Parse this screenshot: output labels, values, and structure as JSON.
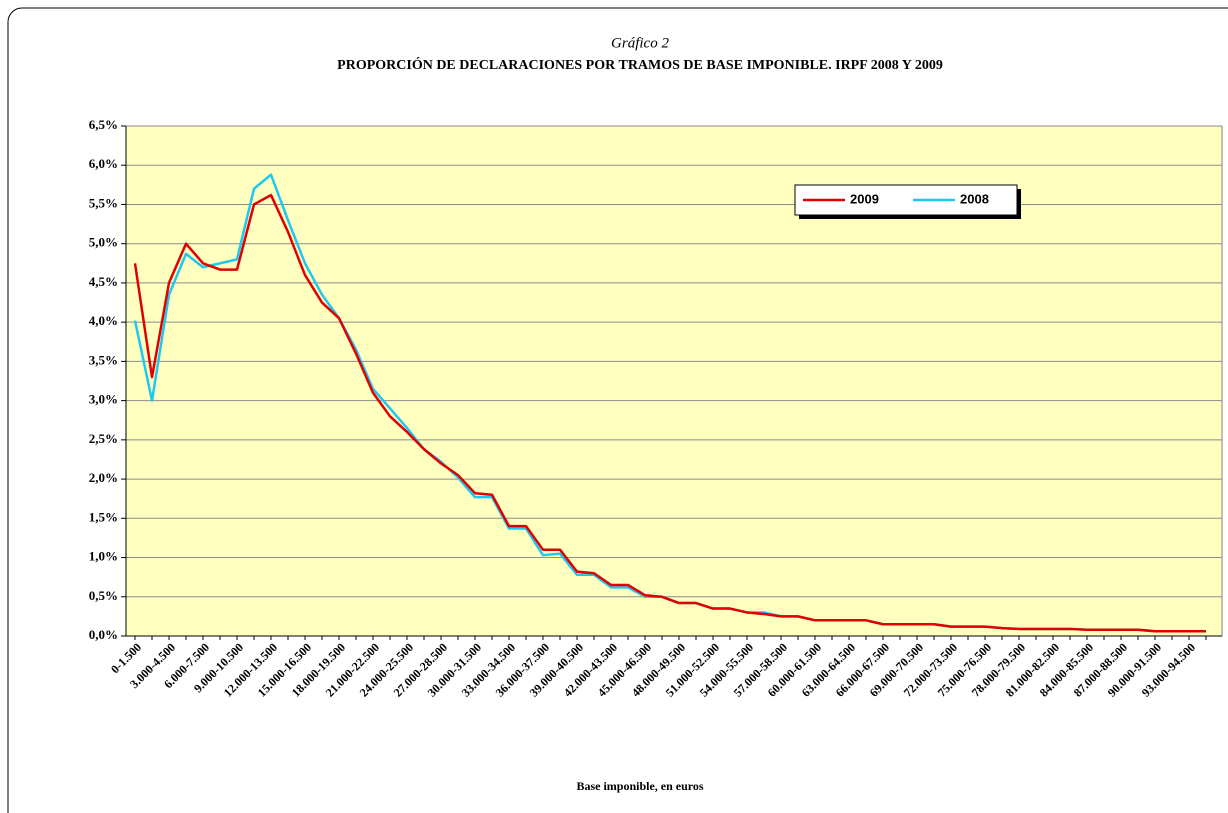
{
  "chart_data": {
    "type": "line",
    "supertitle": "Gráfico 2",
    "title": "PROPORCIÓN DE DECLARACIONES POR TRAMOS DE BASE IMPONIBLE. IRPF 2008 Y 2009",
    "x_label": "Base imponible, en euros",
    "categories": [
      "0-1.500",
      null,
      "3.000-4.500",
      null,
      "6.000-7.500",
      null,
      "9.000-10.500",
      null,
      "12.000-13.500",
      null,
      "15.000-16.500",
      null,
      "18.000-19.500",
      null,
      "21.000-22.500",
      null,
      "24.000-25.500",
      null,
      "27.000-28.500",
      null,
      "30.000-31.500",
      null,
      "33.000-34.500",
      null,
      "36.000-37.500",
      null,
      "39.000-40.500",
      null,
      "42.000-43.500",
      null,
      "45.000-46.500",
      null,
      "48.000-49.500",
      null,
      "51.000-52.500",
      null,
      "54.000-55.500",
      null,
      "57.000-58.500",
      null,
      "60.000-61.500",
      null,
      "63.000-64.500",
      null,
      "66.000-67.500",
      null,
      "69.000-70.500",
      null,
      "72.000-73.500",
      null,
      "75.000-76.500",
      null,
      "78.000-79.500",
      null,
      "81.000-82.500",
      null,
      "84.000-85.500",
      null,
      "87.000-88.500",
      null,
      "90.000-91.500",
      null,
      "93.000-94.500",
      null
    ],
    "series": [
      {
        "name": "2009",
        "color": "#e00000",
        "values": [
          4.75,
          3.3,
          4.5,
          5.0,
          4.75,
          4.67,
          4.67,
          5.5,
          5.62,
          5.15,
          4.6,
          4.25,
          4.05,
          3.6,
          3.1,
          2.8,
          2.6,
          2.38,
          2.2,
          2.05,
          1.82,
          1.8,
          1.4,
          1.4,
          1.1,
          1.1,
          0.82,
          0.8,
          0.65,
          0.65,
          0.52,
          0.5,
          0.42,
          0.42,
          0.35,
          0.35,
          0.3,
          0.28,
          0.25,
          0.25,
          0.2,
          0.2,
          0.2,
          0.2,
          0.15,
          0.15,
          0.15,
          0.15,
          0.12,
          0.12,
          0.12,
          0.1,
          0.09,
          0.09,
          0.09,
          0.09,
          0.08,
          0.08,
          0.08,
          0.08,
          0.06,
          0.06,
          0.06,
          0.06
        ]
      },
      {
        "name": "2008",
        "color": "#1ec8f0",
        "values": [
          4.02,
          3.0,
          4.35,
          4.87,
          4.7,
          4.75,
          4.8,
          5.7,
          5.88,
          5.3,
          4.75,
          4.35,
          4.05,
          3.65,
          3.15,
          2.9,
          2.65,
          2.38,
          2.22,
          2.02,
          1.77,
          1.77,
          1.37,
          1.37,
          1.03,
          1.05,
          0.78,
          0.78,
          0.62,
          0.62,
          0.5,
          0.5,
          0.42,
          0.42,
          0.35,
          0.35,
          0.3,
          0.3,
          0.25,
          0.25,
          0.2,
          0.2,
          0.2,
          0.2,
          0.15,
          0.15,
          0.15,
          0.15,
          0.12,
          0.12,
          0.12,
          0.1,
          0.09,
          0.09,
          0.09,
          0.09,
          0.08,
          0.08,
          0.08,
          0.08,
          0.06,
          0.06,
          0.06,
          0.06
        ]
      }
    ],
    "ylim": [
      0,
      6.5
    ],
    "yticks": [
      {
        "value": 0,
        "label": "0,0%"
      },
      {
        "value": 0.5,
        "label": "0,5%"
      },
      {
        "value": 1,
        "label": "1,0%"
      },
      {
        "value": 1.5,
        "label": "1,5%"
      },
      {
        "value": 2,
        "label": "2,0%"
      },
      {
        "value": 2.5,
        "label": "2,5%"
      },
      {
        "value": 3,
        "label": "3,0%"
      },
      {
        "value": 3.5,
        "label": "3,5%"
      },
      {
        "value": 4,
        "label": "4,0%"
      },
      {
        "value": 4.5,
        "label": "4,5%"
      },
      {
        "value": 5,
        "label": "5,0%"
      },
      {
        "value": 5.5,
        "label": "5,5%"
      },
      {
        "value": 6,
        "label": "6,0%"
      },
      {
        "value": 6.5,
        "label": "6,5%"
      }
    ],
    "grid": true,
    "legend": "upper right",
    "plot_background": "#ffffc0"
  }
}
